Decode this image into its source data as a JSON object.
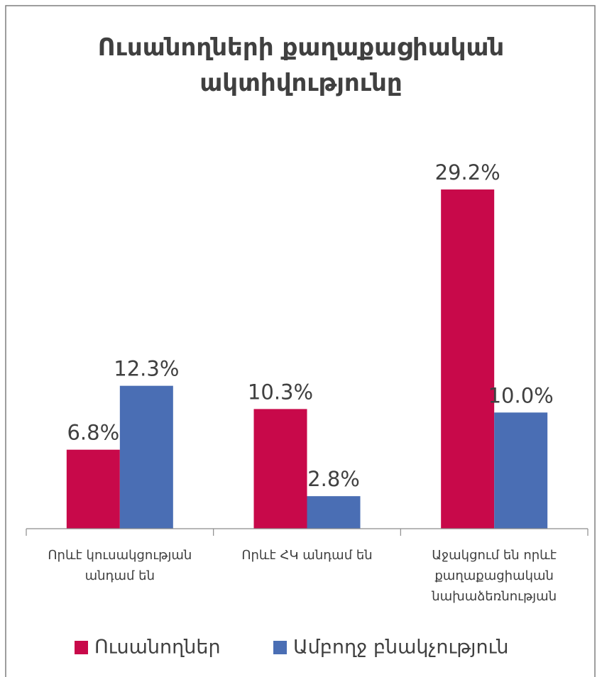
{
  "chart_data": {
    "type": "bar",
    "title": "Ուսանողների քաղաքացիական ակտիվությունը",
    "categories": [
      "Որևէ կուսակցության անդամ են",
      "Որևէ ՀԿ անդամ են",
      "Աջակցում են որևէ քաղաքացիական նախաձեռնության"
    ],
    "series": [
      {
        "name": "Ուսանողներ",
        "color": "#c8094a",
        "values": [
          6.8,
          10.3,
          29.2
        ],
        "value_labels": [
          "6.8%",
          "10.3%",
          "29.2%"
        ]
      },
      {
        "name": "Ամբողջ բնակչություն",
        "color": "#4a6eb4",
        "values": [
          12.3,
          2.8,
          10.0
        ],
        "value_labels": [
          "12.3%",
          "2.8%",
          "10.0%"
        ]
      }
    ],
    "legend": "bottom"
  }
}
